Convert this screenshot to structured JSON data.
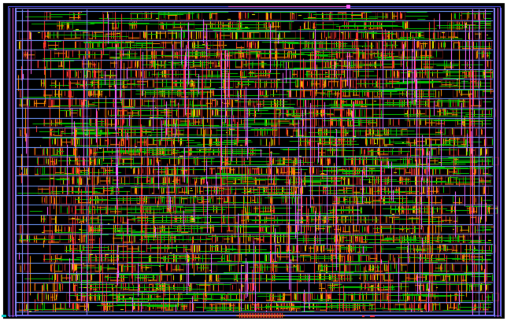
{
  "view": {
    "type": "vlsi-chip-layout",
    "background_color": "#000000",
    "page_color": "#ffffff",
    "layer_colors": {
      "power_rail": "#6f9bff",
      "metal1": "#00c000",
      "metal2": "#ff3030",
      "metal3": "#ff8c00",
      "poly": "#e0e000",
      "via": "#ff60ff",
      "boundary": "#8a8aff",
      "highlight": "#ffff00",
      "accent_teal": "#00c8c8"
    },
    "visible_layers": [
      "power_rail",
      "metal1",
      "metal2",
      "metal3",
      "poly",
      "via",
      "boundary"
    ],
    "rows": 31,
    "vertical_straps": 6
  }
}
